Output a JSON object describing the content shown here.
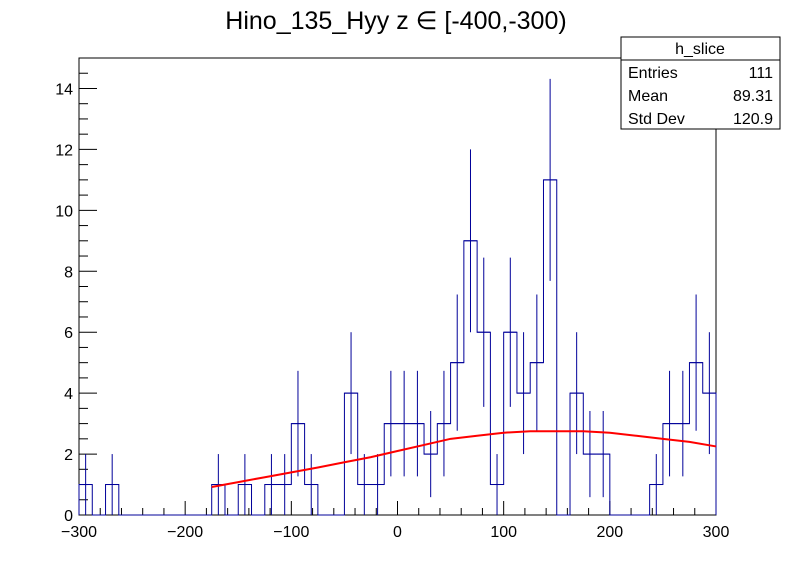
{
  "title": "Hino_135_Hyy z  ∈ [-400,-300)",
  "stats": {
    "name": "h_slice",
    "rows": [
      {
        "label": "Entries",
        "value": "111"
      },
      {
        "label": "Mean",
        "value": "89.31"
      },
      {
        "label": "Std Dev",
        "value": "120.9"
      }
    ]
  },
  "colors": {
    "histogram": "#000099",
    "fit": "#ff0000",
    "axes": "#000000"
  },
  "chart_data": {
    "type": "histogram",
    "title": "Hino_135_Hyy z  ∈ [-400,-300)",
    "xlabel": "",
    "ylabel": "",
    "xlim": [
      -300,
      300
    ],
    "ylim": [
      0,
      15
    ],
    "bin_width": 12.5,
    "bin_low_edges": [
      -300,
      -287.5,
      -275,
      -262.5,
      -250,
      -237.5,
      -225,
      -212.5,
      -200,
      -187.5,
      -175,
      -162.5,
      -150,
      -137.5,
      -125,
      -112.5,
      -100,
      -87.5,
      -75,
      -62.5,
      -50,
      -37.5,
      -25,
      -12.5,
      0,
      12.5,
      25,
      37.5,
      50,
      62.5,
      75,
      87.5,
      100,
      112.5,
      125,
      137.5,
      150,
      162.5,
      175,
      187.5,
      200,
      212.5,
      225,
      237.5,
      250,
      262.5,
      275,
      287.5
    ],
    "counts": [
      1,
      0,
      1,
      0,
      0,
      0,
      0,
      0,
      0,
      0,
      1,
      0,
      1,
      0,
      1,
      1,
      3,
      1,
      0,
      0,
      4,
      1,
      1,
      3,
      3,
      3,
      2,
      3,
      5,
      9,
      6,
      1,
      6,
      4,
      5,
      11,
      0,
      4,
      2,
      2,
      0,
      0,
      0,
      1,
      3,
      3,
      5,
      4
    ],
    "error_bars": "sqrt(N)",
    "fit": {
      "type": "line",
      "x": [
        -175,
        -150,
        -125,
        -100,
        -75,
        -50,
        -25,
        0,
        25,
        50,
        75,
        100,
        125,
        150,
        175,
        200,
        225,
        250,
        275,
        300
      ],
      "y": [
        0.92,
        1.08,
        1.24,
        1.4,
        1.56,
        1.73,
        1.9,
        2.1,
        2.3,
        2.5,
        2.6,
        2.7,
        2.75,
        2.75,
        2.75,
        2.7,
        2.6,
        2.5,
        2.4,
        2.25
      ]
    },
    "x_ticks": [
      -300,
      -200,
      -100,
      0,
      100,
      200,
      300
    ],
    "y_ticks": [
      0,
      2,
      4,
      6,
      8,
      10,
      12,
      14
    ],
    "x_tick_labels": [
      "−300",
      "−200",
      "−100",
      "0",
      "100",
      "200",
      "300"
    ],
    "y_tick_labels": [
      "0",
      "2",
      "4",
      "6",
      "8",
      "10",
      "12",
      "14"
    ],
    "grid": false,
    "legend": "top-right stats box"
  }
}
